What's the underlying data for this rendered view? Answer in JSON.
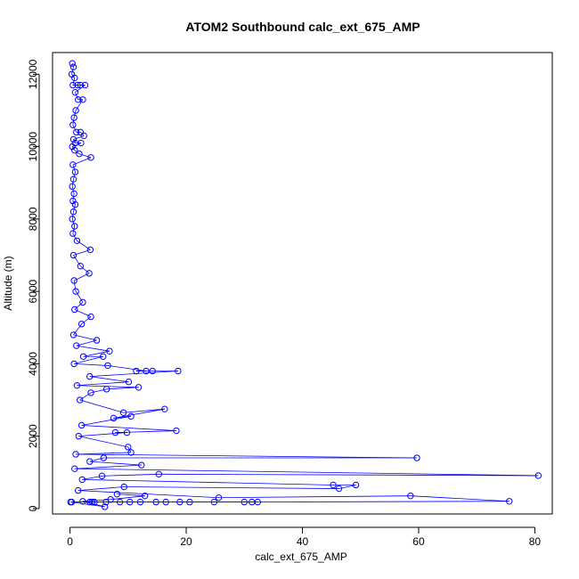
{
  "chart_data": {
    "type": "line",
    "title": "ATOM2 Southbound calc_ext_675_AMP",
    "xlabel": "calc_ext_675_AMP",
    "ylabel": "Altitude (m)",
    "xlim": [
      -3,
      83
    ],
    "ylim": [
      -150,
      12600
    ],
    "x_ticks": [
      0,
      20,
      40,
      60,
      80
    ],
    "y_ticks": [
      0,
      2000,
      4000,
      6000,
      8000,
      10000,
      12000
    ],
    "grid": false,
    "legend": "none",
    "series_color": "#0000ff",
    "marker": "open-circle",
    "series": [
      {
        "points": [
          [
            0.4,
            12300
          ],
          [
            0.6,
            12200
          ],
          [
            0.3,
            12000
          ],
          [
            0.8,
            11900
          ],
          [
            0.5,
            11700
          ],
          [
            1.3,
            11700
          ],
          [
            1.8,
            11700
          ],
          [
            2.6,
            11700
          ],
          [
            0.9,
            11500
          ],
          [
            1.4,
            11300
          ],
          [
            2.2,
            11300
          ],
          [
            1.0,
            11000
          ],
          [
            0.7,
            10800
          ],
          [
            0.5,
            10600
          ],
          [
            1.1,
            10400
          ],
          [
            1.8,
            10400
          ],
          [
            2.4,
            10300
          ],
          [
            0.6,
            10200
          ],
          [
            0.9,
            10100
          ],
          [
            1.9,
            10100
          ],
          [
            0.4,
            10000
          ],
          [
            0.8,
            9900
          ],
          [
            1.6,
            9800
          ],
          [
            3.6,
            9700
          ],
          [
            0.5,
            9500
          ],
          [
            0.9,
            9300
          ],
          [
            0.6,
            9100
          ],
          [
            0.4,
            8900
          ],
          [
            0.7,
            8700
          ],
          [
            0.5,
            8500
          ],
          [
            0.9,
            8400
          ],
          [
            0.6,
            8200
          ],
          [
            0.4,
            8000
          ],
          [
            0.8,
            7800
          ],
          [
            0.5,
            7600
          ],
          [
            1.2,
            7400
          ],
          [
            3.5,
            7150
          ],
          [
            0.6,
            7000
          ],
          [
            1.8,
            6700
          ],
          [
            3.3,
            6500
          ],
          [
            0.7,
            6300
          ],
          [
            1.0,
            6000
          ],
          [
            2.2,
            5700
          ],
          [
            0.8,
            5500
          ],
          [
            3.6,
            5300
          ],
          [
            2.0,
            5100
          ],
          [
            0.6,
            4800
          ],
          [
            4.6,
            4650
          ],
          [
            1.1,
            4500
          ],
          [
            6.8,
            4350
          ],
          [
            2.3,
            4200
          ],
          [
            5.7,
            4200
          ],
          [
            0.7,
            4000
          ],
          [
            6.5,
            3950
          ],
          [
            13.1,
            3800
          ],
          [
            11.4,
            3800
          ],
          [
            14.2,
            3800
          ],
          [
            18.6,
            3800
          ],
          [
            3.4,
            3650
          ],
          [
            10.1,
            3500
          ],
          [
            1.2,
            3400
          ],
          [
            11.8,
            3350
          ],
          [
            6.3,
            3300
          ],
          [
            3.6,
            3200
          ],
          [
            1.7,
            3000
          ],
          [
            9.2,
            2650
          ],
          [
            16.3,
            2750
          ],
          [
            7.5,
            2500
          ],
          [
            10.5,
            2550
          ],
          [
            2.0,
            2300
          ],
          [
            18.3,
            2150
          ],
          [
            7.8,
            2100
          ],
          [
            9.8,
            2100
          ],
          [
            1.5,
            2000
          ],
          [
            10.0,
            1700
          ],
          [
            10.5,
            1550
          ],
          [
            1.0,
            1500
          ],
          [
            59.7,
            1400
          ],
          [
            5.8,
            1400
          ],
          [
            3.4,
            1300
          ],
          [
            12.3,
            1200
          ],
          [
            0.8,
            1100
          ],
          [
            80.6,
            910
          ],
          [
            15.3,
            950
          ],
          [
            5.5,
            900
          ],
          [
            2.1,
            800
          ],
          [
            45.3,
            650
          ],
          [
            49.2,
            650
          ],
          [
            46.3,
            550
          ],
          [
            9.3,
            600
          ],
          [
            1.4,
            500
          ],
          [
            25.6,
            300
          ],
          [
            58.6,
            350
          ],
          [
            75.6,
            200
          ],
          [
            30.0,
            180
          ],
          [
            32.3,
            180
          ],
          [
            20.6,
            180
          ],
          [
            16.5,
            180
          ],
          [
            12.1,
            180
          ],
          [
            4.2,
            180
          ],
          [
            0.3,
            180
          ],
          [
            3.4,
            180
          ],
          [
            6.2,
            180
          ],
          [
            8.6,
            180
          ],
          [
            10.3,
            180
          ],
          [
            14.8,
            180
          ],
          [
            18.9,
            180
          ],
          [
            24.8,
            180
          ],
          [
            31.3,
            180
          ],
          [
            3.8,
            180
          ],
          [
            0.1,
            180
          ],
          [
            6.0,
            50
          ],
          [
            2.2,
            200
          ],
          [
            7.0,
            250
          ],
          [
            12.9,
            350
          ],
          [
            8.1,
            400
          ]
        ]
      }
    ]
  }
}
